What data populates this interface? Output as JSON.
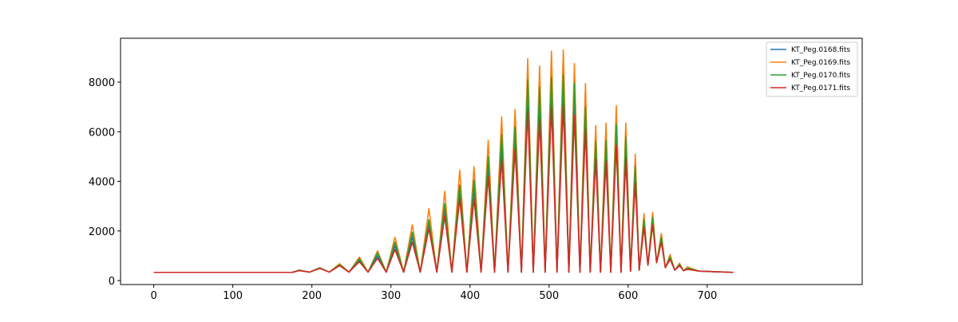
{
  "chart_data": {
    "type": "line",
    "x": [
      0,
      150,
      175,
      184,
      197,
      210,
      222,
      235,
      247,
      260,
      271,
      283,
      294,
      305,
      316,
      327,
      337,
      348,
      358,
      368,
      377,
      387,
      396,
      405,
      414,
      423,
      431,
      440,
      448,
      457,
      465,
      473,
      480,
      488,
      495,
      503,
      510,
      518,
      525,
      532,
      539,
      546,
      552,
      559,
      565,
      572,
      578,
      585,
      591,
      597,
      603,
      609,
      614,
      620,
      625,
      631,
      636,
      642,
      647,
      653,
      659,
      665,
      670,
      675,
      690,
      733
    ],
    "series": [
      {
        "name": "KT_Peg.0168.fits",
        "color": "#1f77b4",
        "values": [
          330,
          330,
          330,
          410,
          340,
          500,
          340,
          620,
          340,
          820,
          340,
          1000,
          340,
          1400,
          340,
          1750,
          340,
          2300,
          340,
          2850,
          340,
          3600,
          340,
          3700,
          340,
          4600,
          340,
          5400,
          340,
          5800,
          340,
          7500,
          340,
          7200,
          340,
          7600,
          340,
          7700,
          340,
          7300,
          340,
          6600,
          340,
          5200,
          340,
          5200,
          340,
          5900,
          340,
          5400,
          380,
          4300,
          420,
          2300,
          620,
          2400,
          720,
          1650,
          520,
          900,
          420,
          620,
          400,
          480,
          380,
          330
        ]
      },
      {
        "name": "KT_Peg.0169.fits",
        "color": "#ff7f0e",
        "values": [
          330,
          330,
          330,
          420,
          340,
          520,
          340,
          680,
          340,
          950,
          340,
          1200,
          340,
          1750,
          340,
          2250,
          340,
          2900,
          340,
          3600,
          340,
          4450,
          340,
          4600,
          340,
          5650,
          340,
          6600,
          340,
          6900,
          340,
          8950,
          340,
          8650,
          340,
          9250,
          340,
          9300,
          340,
          8750,
          340,
          7950,
          340,
          6250,
          340,
          6350,
          340,
          7050,
          340,
          6350,
          380,
          5100,
          420,
          2700,
          620,
          2750,
          720,
          1900,
          520,
          1050,
          420,
          700,
          400,
          550,
          380,
          330
        ]
      },
      {
        "name": "KT_Peg.0170.fits",
        "color": "#2ca02c",
        "values": [
          330,
          330,
          330,
          420,
          340,
          510,
          340,
          640,
          340,
          880,
          340,
          1120,
          340,
          1550,
          340,
          1950,
          340,
          2450,
          340,
          3100,
          340,
          3850,
          340,
          4050,
          340,
          5000,
          340,
          5900,
          340,
          6200,
          340,
          8100,
          340,
          7800,
          340,
          8200,
          340,
          8300,
          340,
          7950,
          340,
          7000,
          340,
          5600,
          340,
          5650,
          340,
          6300,
          340,
          5800,
          380,
          4600,
          420,
          2450,
          620,
          2550,
          720,
          1750,
          520,
          950,
          420,
          650,
          400,
          500,
          380,
          330
        ]
      },
      {
        "name": "KT_Peg.0171.fits",
        "color": "#d62728",
        "values": [
          330,
          330,
          330,
          400,
          340,
          490,
          340,
          600,
          340,
          760,
          340,
          900,
          340,
          1250,
          340,
          1550,
          340,
          2100,
          340,
          2600,
          340,
          3300,
          340,
          3300,
          340,
          4200,
          340,
          4900,
          340,
          5300,
          340,
          6850,
          340,
          6500,
          340,
          7000,
          340,
          7050,
          340,
          6650,
          340,
          6100,
          340,
          4900,
          340,
          4800,
          340,
          5450,
          340,
          4900,
          380,
          3950,
          420,
          2150,
          620,
          2250,
          720,
          1550,
          520,
          850,
          420,
          600,
          400,
          450,
          380,
          330
        ]
      }
    ],
    "xlim": [
      -42,
      896
    ],
    "xticks": [
      0,
      100,
      200,
      300,
      400,
      500,
      600,
      700
    ],
    "ylim": [
      -160,
      9770
    ],
    "yticks": [
      0,
      2000,
      4000,
      6000,
      8000
    ],
    "legend": "upper right"
  }
}
